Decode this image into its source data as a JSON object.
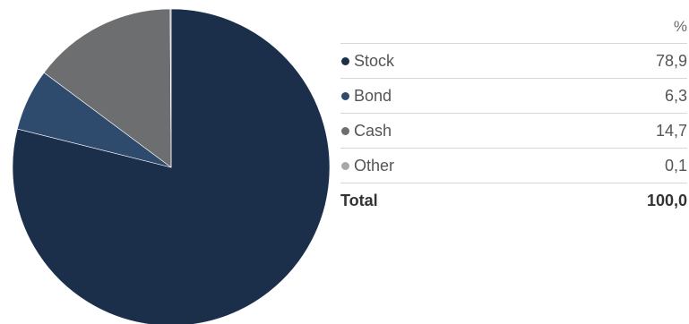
{
  "chart_data": {
    "type": "pie",
    "title": "",
    "unit": "%",
    "slices": [
      {
        "label": "Stock",
        "value": 78.9,
        "display": "78,9",
        "color": "#1b2f4b"
      },
      {
        "label": "Bond",
        "value": 6.3,
        "display": "6,3",
        "color": "#2e4b6e"
      },
      {
        "label": "Cash",
        "value": 14.7,
        "display": "14,7",
        "color": "#6d6e70"
      },
      {
        "label": "Other",
        "value": 0.1,
        "display": "0,1",
        "color": "#a8a8a8"
      }
    ],
    "total": {
      "label": "Total",
      "display": "100,0"
    }
  }
}
